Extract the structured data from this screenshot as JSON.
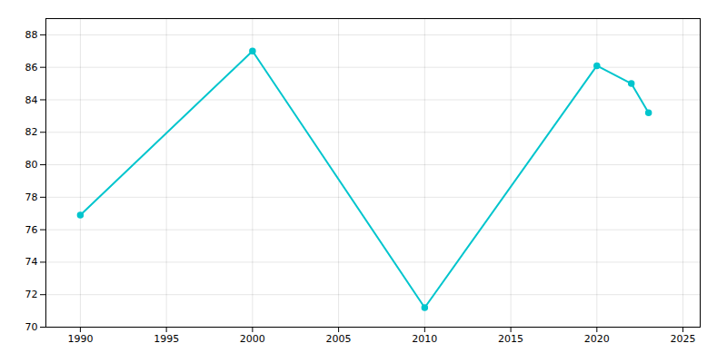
{
  "chart_data": {
    "type": "line",
    "x": [
      1990,
      2000,
      2010,
      2020,
      2022,
      2023
    ],
    "values": [
      76.9,
      87.0,
      71.2,
      86.1,
      85.0,
      83.2
    ],
    "color": "#00C5CD",
    "marker": "circle",
    "xlim": [
      1988,
      2026
    ],
    "ylim": [
      70,
      89
    ],
    "xticks": [
      1990,
      1995,
      2000,
      2005,
      2010,
      2015,
      2020,
      2025
    ],
    "yticks": [
      70,
      72,
      74,
      76,
      78,
      80,
      82,
      84,
      86,
      88
    ],
    "grid": true
  }
}
